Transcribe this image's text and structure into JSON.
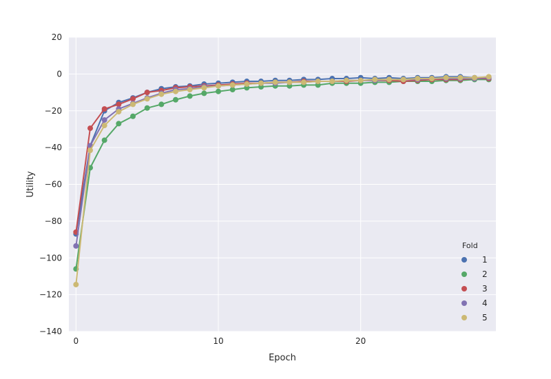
{
  "chart_data": {
    "type": "line",
    "title": "",
    "xlabel": "Epoch",
    "ylabel": "Utility",
    "xlim": [
      -0.5,
      29.5
    ],
    "ylim": [
      -140,
      20
    ],
    "xticks": [
      0,
      10,
      20
    ],
    "yticks": [
      20,
      0,
      -20,
      -40,
      -60,
      -80,
      -100,
      -120,
      -140
    ],
    "grid": true,
    "markers": true,
    "legend": {
      "title": "Fold",
      "placement": "lower-right"
    },
    "x": [
      0,
      1,
      2,
      3,
      4,
      5,
      6,
      7,
      8,
      9,
      10,
      11,
      12,
      13,
      14,
      15,
      16,
      17,
      18,
      19,
      20,
      21,
      22,
      23,
      24,
      25,
      26,
      27,
      28,
      29
    ],
    "series": [
      {
        "name": "1",
        "color": "#4c72b0",
        "values": [
          -87,
          -39,
          -20,
          -15.5,
          -13,
          -10,
          -8,
          -7,
          -6.5,
          -5.5,
          -5,
          -4.5,
          -4,
          -4,
          -3.5,
          -3.5,
          -3,
          -3,
          -2.5,
          -2.5,
          -2,
          -2.5,
          -2,
          -2.5,
          -2,
          -2,
          -1.5,
          -1.5,
          -2,
          -2
        ]
      },
      {
        "name": "2",
        "color": "#55a868",
        "values": [
          -106,
          -51,
          -36,
          -27,
          -23,
          -18.5,
          -16.5,
          -14,
          -12,
          -10.5,
          -9.5,
          -8.5,
          -7.5,
          -7,
          -6.5,
          -6.5,
          -6,
          -6,
          -5,
          -5,
          -5,
          -4.5,
          -4.5,
          -4,
          -4,
          -4,
          -3.5,
          -3.5,
          -3,
          -3
        ]
      },
      {
        "name": "3",
        "color": "#c44e52",
        "values": [
          -86,
          -29.5,
          -19,
          -16.5,
          -13.5,
          -10,
          -9,
          -7.5,
          -7,
          -6.5,
          -6,
          -5.5,
          -5,
          -5,
          -4.5,
          -4.5,
          -4,
          -4,
          -4,
          -4,
          -3.5,
          -3.5,
          -3.5,
          -4,
          -3.5,
          -3,
          -3,
          -3,
          -2.5,
          -2.5
        ]
      },
      {
        "name": "4",
        "color": "#8172b2",
        "values": [
          -93.5,
          -39,
          -25,
          -19,
          -16,
          -13,
          -10.5,
          -8.5,
          -8,
          -7,
          -6.5,
          -6,
          -5.5,
          -5,
          -5,
          -4.5,
          -4.5,
          -4,
          -4,
          -3.5,
          -3.5,
          -3.5,
          -3,
          -3,
          -3,
          -2.5,
          -2.5,
          -2.5,
          -2.5,
          -2
        ]
      },
      {
        "name": "5",
        "color": "#ccb974",
        "values": [
          -114.5,
          -41.5,
          -28,
          -20.5,
          -16.5,
          -13.5,
          -11,
          -9.5,
          -8.5,
          -7.5,
          -6.5,
          -6,
          -5.5,
          -5,
          -4.5,
          -4.5,
          -4.5,
          -4,
          -4,
          -3.5,
          -3.5,
          -3,
          -3,
          -3,
          -2.5,
          -2.5,
          -2,
          -2,
          -2,
          -1.5
        ]
      }
    ]
  }
}
